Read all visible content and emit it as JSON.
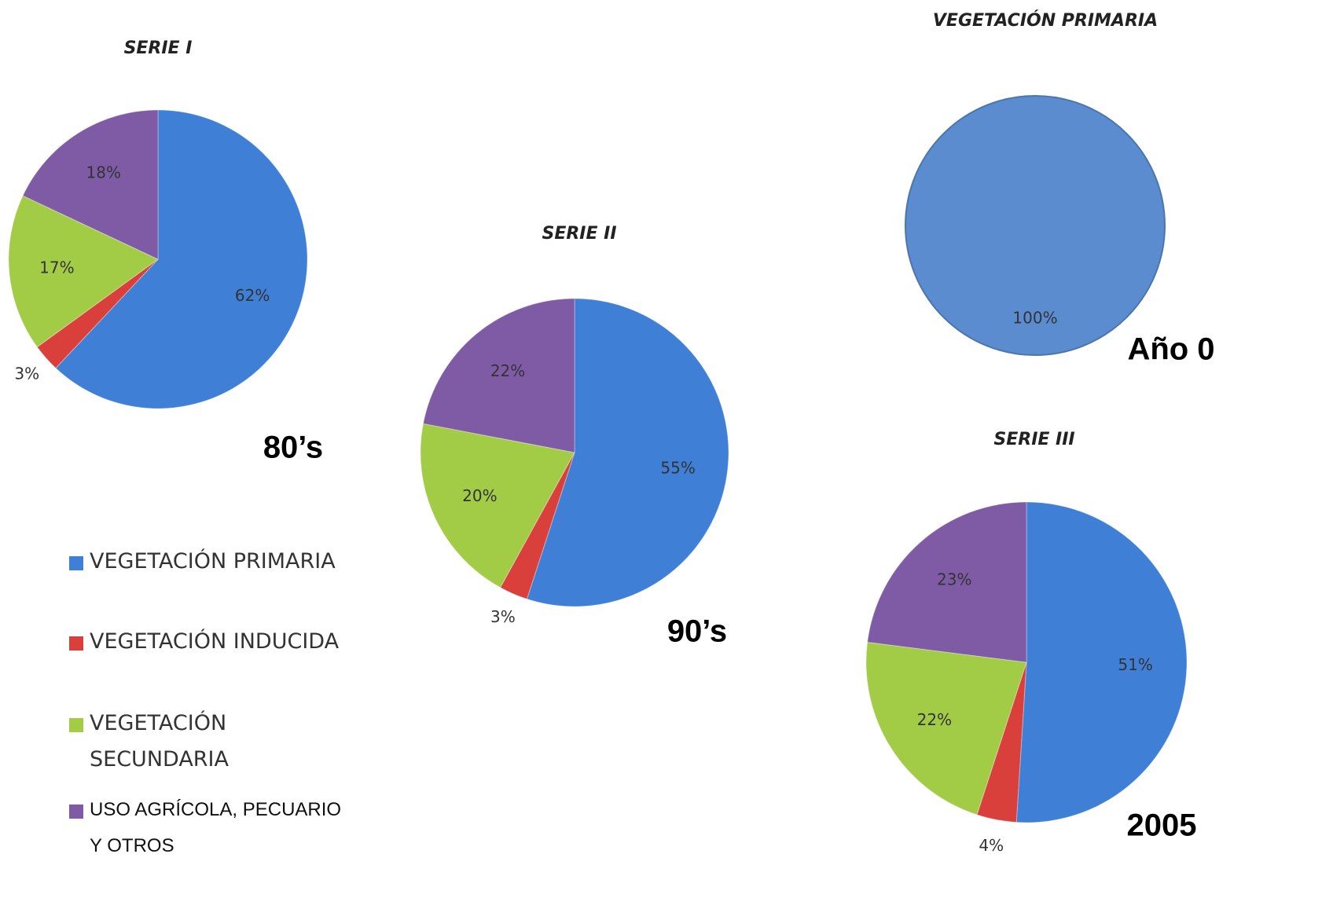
{
  "chart_data": [
    {
      "type": "pie",
      "title": "SERIE I",
      "annotation": "80’s",
      "values": [
        62,
        3,
        17,
        18
      ],
      "value_labels": [
        "62%",
        "3%",
        "17%",
        "18%"
      ],
      "colors": [
        "#3f7fd6",
        "#d9403c",
        "#a3cc46",
        "#7f5ba6"
      ]
    },
    {
      "type": "pie",
      "title": "SERIE II",
      "annotation": "90’s",
      "values": [
        55,
        3,
        20,
        22
      ],
      "value_labels": [
        "55%",
        "3%",
        "20%",
        "22%"
      ],
      "colors": [
        "#3f7fd6",
        "#d9403c",
        "#a3cc46",
        "#7f5ba6"
      ]
    },
    {
      "type": "pie",
      "title": "VEGETACIÓN PRIMARIA",
      "annotation": "Año 0",
      "values": [
        100
      ],
      "value_labels": [
        "100%"
      ],
      "colors": [
        "#5a8ccf"
      ]
    },
    {
      "type": "pie",
      "title": "SERIE III",
      "annotation": "2005",
      "values": [
        51,
        4,
        22,
        23
      ],
      "value_labels": [
        "51%",
        "4%",
        "22%",
        "23%"
      ],
      "colors": [
        "#3f7fd6",
        "#d9403c",
        "#a3cc46",
        "#7f5ba6"
      ]
    }
  ],
  "legend": {
    "items": [
      "VEGETACIÓN PRIMARIA",
      "VEGETACIÓN INDUCIDA",
      "VEGETACIÓN SECUNDARIA",
      "USO AGRÍCOLA, PECUARIO Y OTROS"
    ]
  }
}
